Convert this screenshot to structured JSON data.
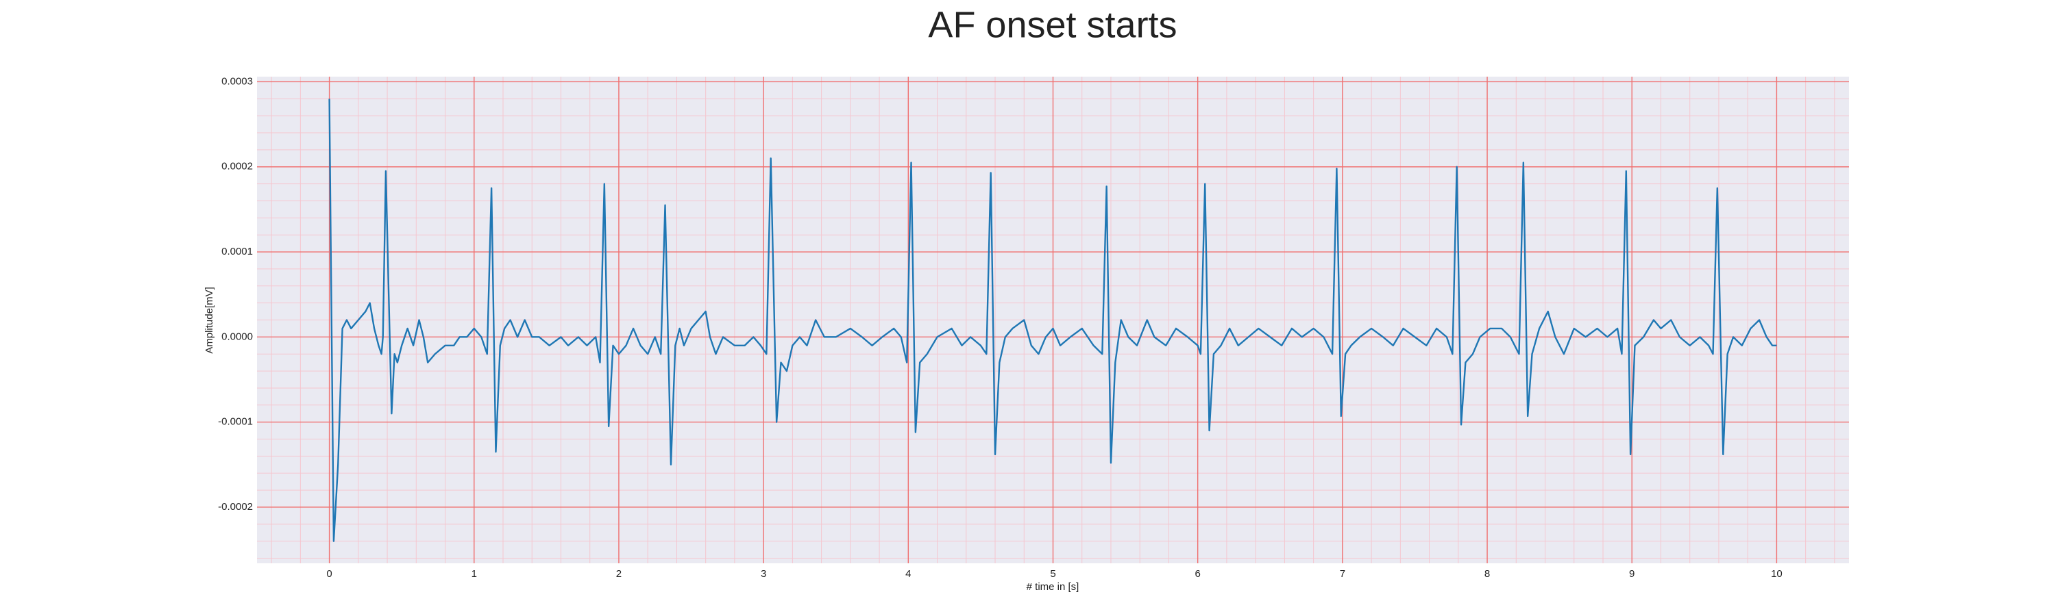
{
  "chart_data": {
    "type": "line",
    "title": "AF onset starts",
    "xlabel": "# time in [s]",
    "ylabel": "Amplitude[mV]",
    "color": "#1f77b4",
    "background": "#eaeaf2",
    "grid": true,
    "grid_color": "#f07070",
    "minor_grid": true,
    "minor_grid_color": "#f5c6cf",
    "xlim": [
      -0.5,
      10.5
    ],
    "ylim": [
      -0.000266,
      0.000306
    ],
    "xticks": [
      0,
      1,
      2,
      3,
      4,
      5,
      6,
      7,
      8,
      9,
      10
    ],
    "yticks": [
      -0.0002,
      -0.0001,
      {
        "value": 0,
        "label": "0.0000"
      },
      0.0001,
      0.0002,
      0.0003
    ],
    "xminorticks": [
      -0.4,
      -0.2,
      0.2,
      0.4,
      0.6,
      0.8,
      1.2,
      1.4,
      1.6,
      1.8,
      2.2,
      2.4,
      2.6,
      2.8,
      3.2,
      3.4,
      3.6,
      3.8,
      4.2,
      4.4,
      4.6,
      4.8,
      5.2,
      5.4,
      5.6,
      5.8,
      6.2,
      6.4,
      6.6,
      6.8,
      7.2,
      7.4,
      7.6,
      7.8,
      8.2,
      8.4,
      8.6,
      8.8,
      9.2,
      9.4,
      9.6,
      9.8,
      10.2,
      10.4
    ],
    "yminorticks": [
      -0.00026,
      -0.00024,
      -0.00022,
      -0.00018,
      -0.00016,
      -0.00014,
      -0.00012,
      -8e-05,
      -6e-05,
      -4e-05,
      -2e-05,
      2e-05,
      4e-05,
      6e-05,
      8e-05,
      0.00012,
      0.00014,
      0.00016,
      0.00018,
      0.00022,
      0.00024,
      0.00026,
      0.00028
    ],
    "x": [
      0.0,
      0.03,
      0.06,
      0.09,
      0.12,
      0.15,
      0.2,
      0.25,
      0.28,
      0.31,
      0.34,
      0.36,
      0.37,
      0.39,
      0.41,
      0.43,
      0.45,
      0.47,
      0.5,
      0.54,
      0.58,
      0.62,
      0.65,
      0.68,
      0.73,
      0.8,
      0.86,
      0.9,
      0.95,
      1.0,
      1.05,
      1.09,
      1.12,
      1.15,
      1.18,
      1.21,
      1.25,
      1.3,
      1.35,
      1.4,
      1.45,
      1.52,
      1.6,
      1.65,
      1.72,
      1.78,
      1.84,
      1.87,
      1.9,
      1.93,
      1.96,
      2.0,
      2.05,
      2.1,
      2.15,
      2.2,
      2.25,
      2.29,
      2.32,
      2.36,
      2.39,
      2.42,
      2.45,
      2.5,
      2.55,
      2.6,
      2.63,
      2.67,
      2.72,
      2.8,
      2.87,
      2.93,
      2.98,
      3.02,
      3.05,
      3.09,
      3.12,
      3.16,
      3.2,
      3.25,
      3.3,
      3.36,
      3.42,
      3.5,
      3.6,
      3.68,
      3.75,
      3.82,
      3.9,
      3.95,
      3.99,
      4.02,
      4.05,
      4.08,
      4.13,
      4.2,
      4.3,
      4.37,
      4.43,
      4.5,
      4.54,
      4.57,
      4.6,
      4.63,
      4.67,
      4.72,
      4.8,
      4.85,
      4.9,
      4.95,
      5.0,
      5.05,
      5.12,
      5.2,
      5.28,
      5.34,
      5.37,
      5.4,
      5.43,
      5.47,
      5.52,
      5.58,
      5.65,
      5.7,
      5.78,
      5.85,
      5.93,
      6.0,
      6.02,
      6.05,
      6.08,
      6.11,
      6.16,
      6.22,
      6.28,
      6.35,
      6.42,
      6.5,
      6.58,
      6.65,
      6.72,
      6.8,
      6.87,
      6.93,
      6.96,
      6.99,
      7.02,
      7.06,
      7.12,
      7.2,
      7.28,
      7.35,
      7.42,
      7.5,
      7.58,
      7.65,
      7.72,
      7.76,
      7.79,
      7.82,
      7.85,
      7.9,
      7.95,
      8.02,
      8.1,
      8.16,
      8.22,
      8.25,
      8.28,
      8.31,
      8.36,
      8.42,
      8.47,
      8.53,
      8.6,
      8.68,
      8.76,
      8.83,
      8.9,
      8.93,
      8.96,
      8.99,
      9.02,
      9.08,
      9.15,
      9.2,
      9.27,
      9.33,
      9.4,
      9.47,
      9.53,
      9.56,
      9.59,
      9.63,
      9.66,
      9.7,
      9.76,
      9.82,
      9.88,
      9.93,
      9.97,
      10.0
    ],
    "values": [
      0.00028,
      -0.00024,
      -0.00015,
      1e-05,
      2e-05,
      1e-05,
      2e-05,
      3e-05,
      4e-05,
      1e-05,
      -1e-05,
      -2e-05,
      0,
      0.000195,
      5e-05,
      -9e-05,
      -2e-05,
      -3e-05,
      -1e-05,
      1e-05,
      -1e-05,
      2e-05,
      0,
      -3e-05,
      -2e-05,
      -1e-05,
      -1e-05,
      0,
      0,
      1e-05,
      0,
      -2e-05,
      0.000175,
      -0.000135,
      -1e-05,
      1e-05,
      2e-05,
      0,
      2e-05,
      0,
      0,
      -1e-05,
      0,
      -1e-05,
      0,
      -1e-05,
      0,
      -3e-05,
      0.00018,
      -0.000105,
      -1e-05,
      -2e-05,
      -1e-05,
      1e-05,
      -1e-05,
      -2e-05,
      0,
      -2e-05,
      0.000155,
      -0.00015,
      -1e-05,
      1e-05,
      -1e-05,
      1e-05,
      2e-05,
      3e-05,
      0,
      -2e-05,
      0,
      -1e-05,
      -1e-05,
      0,
      -1e-05,
      -2e-05,
      0.00021,
      -0.0001,
      -3e-05,
      -4e-05,
      -1e-05,
      0,
      -1e-05,
      2e-05,
      0,
      0,
      1e-05,
      0,
      -1e-05,
      0,
      1e-05,
      0,
      -3e-05,
      0.000205,
      -0.000112,
      -3e-05,
      -2e-05,
      0,
      1e-05,
      -1e-05,
      0,
      -1e-05,
      -2e-05,
      0.000193,
      -0.000138,
      -3e-05,
      0,
      1e-05,
      2e-05,
      -1e-05,
      -2e-05,
      0,
      1e-05,
      -1e-05,
      0,
      1e-05,
      -1e-05,
      -2e-05,
      0.000177,
      -0.000148,
      -3e-05,
      2e-05,
      0,
      -1e-05,
      2e-05,
      0,
      -1e-05,
      1e-05,
      0,
      -1e-05,
      -2e-05,
      0.00018,
      -0.00011,
      -2e-05,
      -1e-05,
      1e-05,
      -1e-05,
      0,
      1e-05,
      0,
      -1e-05,
      1e-05,
      0,
      1e-05,
      0,
      -2e-05,
      0.000198,
      -9.3e-05,
      -2e-05,
      -1e-05,
      0,
      1e-05,
      0,
      -1e-05,
      1e-05,
      0,
      -1e-05,
      1e-05,
      0,
      -2e-05,
      0.0002,
      -0.000103,
      -3e-05,
      -2e-05,
      0,
      1e-05,
      1e-05,
      0,
      -2e-05,
      0.000205,
      -9.3e-05,
      -2e-05,
      1e-05,
      3e-05,
      0,
      -2e-05,
      1e-05,
      0,
      1e-05,
      0,
      1e-05,
      -2e-05,
      0.000195,
      -0.000138,
      -1e-05,
      0,
      2e-05,
      1e-05,
      2e-05,
      0,
      -1e-05,
      0,
      -1e-05,
      -2e-05,
      0.000175,
      -0.000138,
      -2e-05,
      0,
      -1e-05,
      1e-05,
      2e-05,
      0,
      -1e-05,
      -1e-05
    ]
  }
}
